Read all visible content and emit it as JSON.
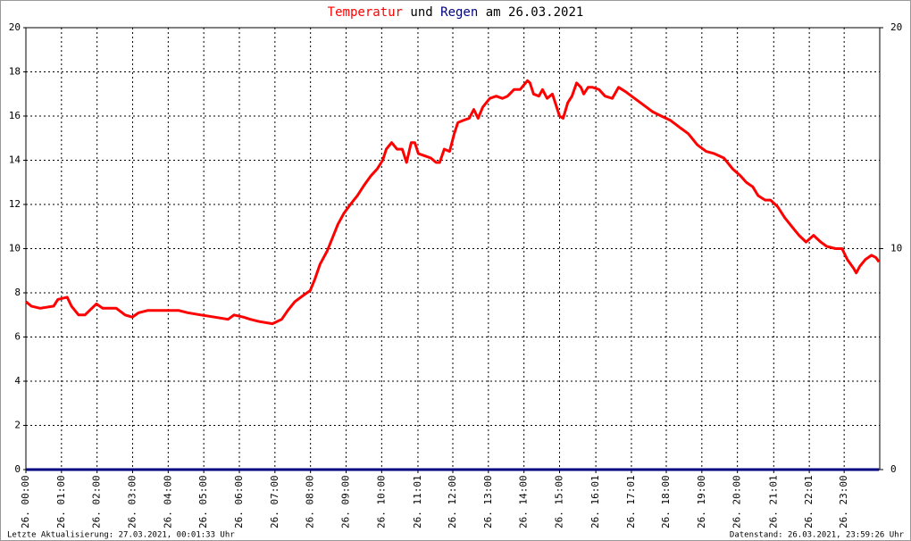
{
  "chart_data": {
    "type": "line",
    "title_connector": "und",
    "title_date": "am 26.03.2021",
    "footer_left": "Letzte Aktualisierung: 27.03.2021, 00:01:33 Uhr",
    "footer_right": "Datenstand: 26.03.2021, 23:59:26 Uhr",
    "xlim": [
      0,
      24
    ],
    "xticks": [
      {
        "value": 0,
        "label": "26. 00:00"
      },
      {
        "value": 1,
        "label": "26. 01:00"
      },
      {
        "value": 2,
        "label": "26. 02:00"
      },
      {
        "value": 3,
        "label": "26. 03:00"
      },
      {
        "value": 4,
        "label": "26. 04:00"
      },
      {
        "value": 5,
        "label": "26. 05:00"
      },
      {
        "value": 6,
        "label": "26. 06:00"
      },
      {
        "value": 7,
        "label": "26. 07:00"
      },
      {
        "value": 8,
        "label": "26. 08:00"
      },
      {
        "value": 9,
        "label": "26. 09:00"
      },
      {
        "value": 10,
        "label": "26. 10:00"
      },
      {
        "value": 11.02,
        "label": "26. 11:01"
      },
      {
        "value": 12,
        "label": "26. 12:00"
      },
      {
        "value": 13,
        "label": "26. 13:00"
      },
      {
        "value": 14,
        "label": "26. 14:00"
      },
      {
        "value": 15,
        "label": "26. 15:00"
      },
      {
        "value": 16.02,
        "label": "26. 16:01"
      },
      {
        "value": 17.02,
        "label": "26. 17:01"
      },
      {
        "value": 18,
        "label": "26. 18:00"
      },
      {
        "value": 19,
        "label": "26. 19:00"
      },
      {
        "value": 20,
        "label": "26. 20:00"
      },
      {
        "value": 21.02,
        "label": "26. 21:01"
      },
      {
        "value": 22.02,
        "label": "26. 22:01"
      },
      {
        "value": 23,
        "label": "26. 23:00"
      }
    ],
    "ylim": [
      0,
      20
    ],
    "yticks": [
      0,
      2,
      4,
      6,
      8,
      10,
      12,
      14,
      16,
      18,
      20
    ],
    "y2lim": [
      0,
      20
    ],
    "y2ticks": [
      0,
      10,
      20
    ],
    "grid": true,
    "series": [
      {
        "name": "Temperatur",
        "color": "#ff0000",
        "x": [
          0,
          0.15,
          0.4,
          0.78,
          0.9,
          1.16,
          1.28,
          1.48,
          1.66,
          1.98,
          2.16,
          2.54,
          2.79,
          2.99,
          3.17,
          3.42,
          3.67,
          4.05,
          4.3,
          4.55,
          4.92,
          5.3,
          5.68,
          5.85,
          6.11,
          6.31,
          6.56,
          6.93,
          7.19,
          7.36,
          7.56,
          7.81,
          7.99,
          8.12,
          8.27,
          8.47,
          8.62,
          8.77,
          8.94,
          9.12,
          9.32,
          9.52,
          9.7,
          9.87,
          10.03,
          10.13,
          10.28,
          10.43,
          10.58,
          10.7,
          10.83,
          10.93,
          11.03,
          11.21,
          11.38,
          11.53,
          11.63,
          11.76,
          11.91,
          12.04,
          12.14,
          12.29,
          12.46,
          12.59,
          12.71,
          12.84,
          13.04,
          13.22,
          13.39,
          13.54,
          13.72,
          13.89,
          14.1,
          14.17,
          14.27,
          14.42,
          14.52,
          14.65,
          14.8,
          14.9,
          15.0,
          15.1,
          15.23,
          15.35,
          15.48,
          15.6,
          15.68,
          15.8,
          15.93,
          16.11,
          16.28,
          16.48,
          16.66,
          16.86,
          17.11,
          17.36,
          17.61,
          17.86,
          18.12,
          18.37,
          18.62,
          18.87,
          19.12,
          19.35,
          19.62,
          19.87,
          20.08,
          20.25,
          20.43,
          20.58,
          20.78,
          20.93,
          21.13,
          21.33,
          21.53,
          21.73,
          21.93,
          22.14,
          22.34,
          22.51,
          22.76,
          22.94,
          23.09,
          23.27,
          23.34,
          23.44,
          23.59,
          23.77,
          23.89,
          23.98
        ],
        "values": [
          7.6,
          7.4,
          7.3,
          7.4,
          7.7,
          7.8,
          7.4,
          7.0,
          7.0,
          7.5,
          7.3,
          7.3,
          7.0,
          6.9,
          7.1,
          7.2,
          7.2,
          7.2,
          7.2,
          7.1,
          7.0,
          6.9,
          6.8,
          7.0,
          6.9,
          6.8,
          6.7,
          6.6,
          6.8,
          7.2,
          7.6,
          7.9,
          8.1,
          8.6,
          9.3,
          9.9,
          10.5,
          11.1,
          11.6,
          12.0,
          12.4,
          12.9,
          13.3,
          13.6,
          14.0,
          14.5,
          14.8,
          14.5,
          14.5,
          13.9,
          14.8,
          14.8,
          14.3,
          14.2,
          14.1,
          13.9,
          13.9,
          14.5,
          14.4,
          15.2,
          15.7,
          15.8,
          15.9,
          16.3,
          15.9,
          16.4,
          16.8,
          16.9,
          16.8,
          16.9,
          17.2,
          17.2,
          17.6,
          17.5,
          17.0,
          16.9,
          17.2,
          16.8,
          17.0,
          16.5,
          16.0,
          15.9,
          16.6,
          16.9,
          17.5,
          17.3,
          17.0,
          17.3,
          17.3,
          17.2,
          16.9,
          16.8,
          17.3,
          17.1,
          16.8,
          16.5,
          16.2,
          16.0,
          15.8,
          15.5,
          15.2,
          14.7,
          14.4,
          14.3,
          14.1,
          13.6,
          13.3,
          13.0,
          12.8,
          12.4,
          12.2,
          12.2,
          11.9,
          11.4,
          11.0,
          10.6,
          10.3,
          10.6,
          10.3,
          10.1,
          10.0,
          10.0,
          9.5,
          9.1,
          8.9,
          9.2,
          9.5,
          9.7,
          9.6,
          9.4
        ]
      },
      {
        "name": "Regen",
        "color": "#000080",
        "axis": "y2",
        "x": [
          0,
          23.98
        ],
        "values": [
          0,
          0
        ]
      }
    ]
  }
}
